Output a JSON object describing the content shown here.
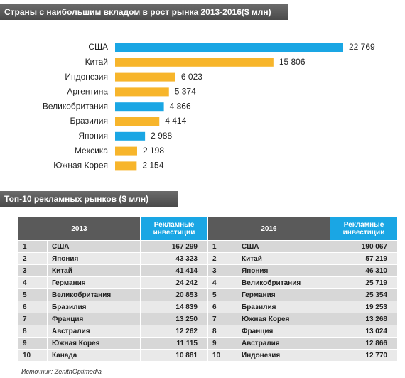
{
  "chart_data": {
    "type": "bar",
    "orientation": "horizontal",
    "title": "Страны с наибольшим вкладом в рост рынка 2013-2016($ млн)",
    "categories": [
      "США",
      "Китай",
      "Индонезия",
      "Аргентина",
      "Великобритания",
      "Бразилия",
      "Япония",
      "Мексика",
      "Южная Корея"
    ],
    "values": [
      22769,
      15806,
      6023,
      5374,
      4866,
      4414,
      2988,
      2198,
      2154
    ],
    "value_labels": [
      "22 769",
      "15 806",
      "6 023",
      "5 374",
      "4 866",
      "4 414",
      "2 988",
      "2 198",
      "2 154"
    ],
    "colors": [
      "#1aa6e4",
      "#f7b52b",
      "#f7b52b",
      "#f7b52b",
      "#1aa6e4",
      "#f7b52b",
      "#1aa6e4",
      "#f7b52b",
      "#f7b52b"
    ]
  },
  "table": {
    "title": "Топ-10 рекламных рынков ($ млн)",
    "headers": [
      "2013",
      "Рекламные инвестиции",
      "2016",
      "Рекламные инвестиции"
    ],
    "rows": [
      [
        "1",
        "США",
        "167 299",
        "1",
        "США",
        "190 067"
      ],
      [
        "2",
        "Япония",
        "43 323",
        "2",
        "Китай",
        "57 219"
      ],
      [
        "3",
        "Китай",
        "41 414",
        "3",
        "Япония",
        "46 310"
      ],
      [
        "4",
        "Германия",
        "24 242",
        "4",
        "Великобритания",
        "25 719"
      ],
      [
        "5",
        "Великобритания",
        "20 853",
        "5",
        "Германия",
        "25 354"
      ],
      [
        "6",
        "Бразилия",
        "14 839",
        "6",
        "Бразилия",
        "19 253"
      ],
      [
        "7",
        "Франция",
        "13 250",
        "7",
        "Южная Корея",
        "13 268"
      ],
      [
        "8",
        "Австралия",
        "12 262",
        "8",
        "Франция",
        "13 024"
      ],
      [
        "9",
        "Южная Корея",
        "11 115",
        "9",
        "Австралия",
        "12 866"
      ],
      [
        "10",
        "Канада",
        "10 881",
        "10",
        "Индонезия",
        "12 770"
      ]
    ],
    "source": "Источник: ZenithOptimedia"
  }
}
